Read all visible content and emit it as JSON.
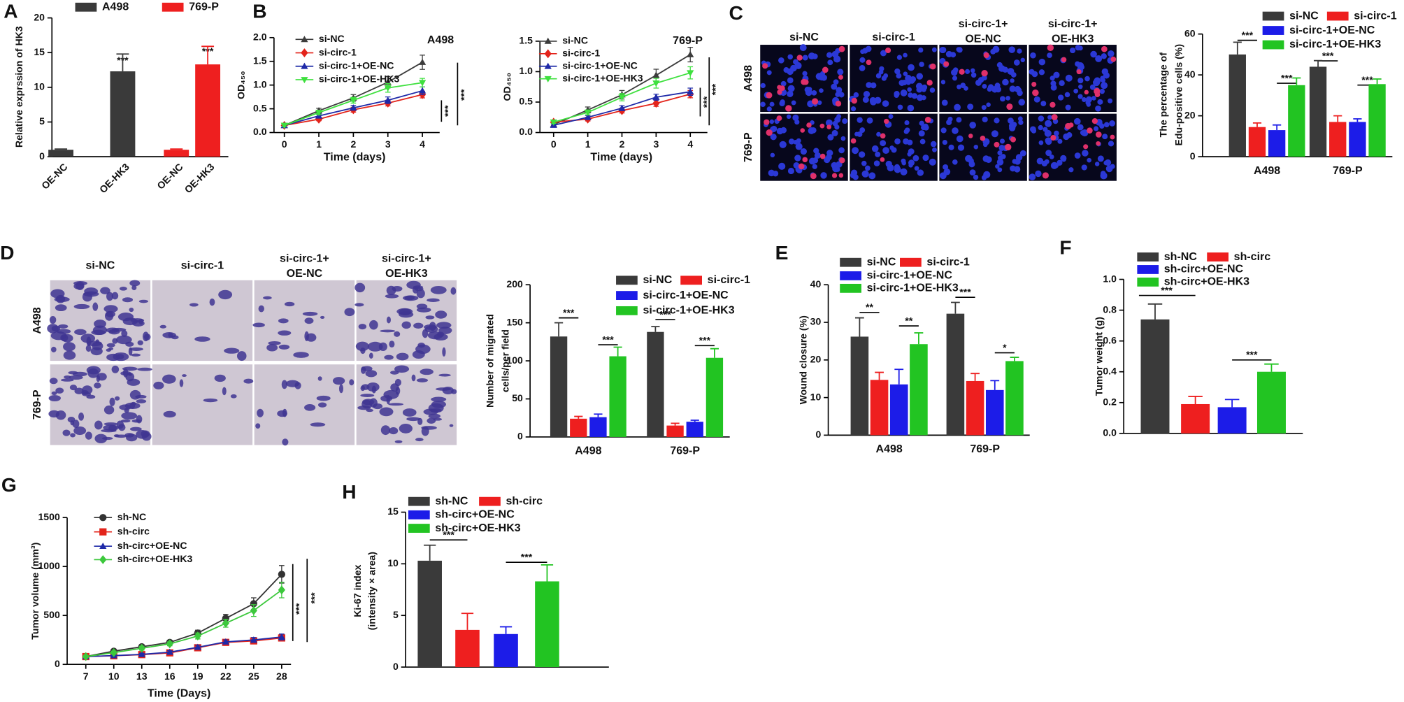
{
  "panel_labels": [
    "A",
    "B",
    "C",
    "D",
    "E",
    "F",
    "G",
    "H"
  ],
  "image_panels": [
    {
      "columns": [
        [
          "si-NC"
        ],
        [
          "si-circ-1"
        ],
        [
          "si-circ-1+",
          "OE-NC"
        ],
        [
          "si-circ-1+",
          "OE-HK3"
        ]
      ],
      "rows": [
        "A498",
        "769-P"
      ]
    },
    {
      "columns": [
        [
          "si-NC"
        ],
        [
          "si-circ-1"
        ],
        [
          "si-circ-1+",
          "OE-NC"
        ],
        [
          "si-circ-1+",
          "OE-HK3"
        ]
      ],
      "rows": [
        "A498",
        "769-P"
      ]
    }
  ],
  "chart_data": [
    {
      "type": "bar",
      "ylabel": [
        "Relative exprssion of HK3"
      ],
      "categories": [
        "OE-NC",
        "OE-HK3",
        "OE-NC",
        "OE-HK3"
      ],
      "series": [
        {
          "name": "A498",
          "color": "#3a3a3a",
          "values": [
            1.0,
            12.3,
            null,
            null
          ],
          "errors": [
            0.1,
            2.5,
            null,
            null
          ]
        },
        {
          "name": "769-P",
          "color": "#ee1f1f",
          "values": [
            null,
            null,
            1.0,
            13.3
          ],
          "errors": [
            null,
            null,
            0.1,
            2.6
          ]
        }
      ],
      "ylim": [
        0,
        20
      ],
      "yticks": [
        0,
        5,
        10,
        15,
        20
      ],
      "annotations": [
        "***",
        "***"
      ]
    },
    {
      "type": "line",
      "title": "A498",
      "xlabel": "Time (days)",
      "ylabel": [
        "OD₄₅₀"
      ],
      "x": [
        0,
        1,
        2,
        3,
        4
      ],
      "xlim": [
        -0.3,
        4.5
      ],
      "xticks": [
        0,
        1,
        2,
        3,
        4
      ],
      "ylim": [
        0,
        2
      ],
      "yticks": [
        {
          "value": 0,
          "label": "0.0"
        },
        0.5,
        {
          "value": 1,
          "label": "1.0"
        },
        1.5,
        {
          "value": 2,
          "label": "2.0"
        }
      ],
      "series": [
        {
          "name": "si-NC",
          "color": "#3c3c3c",
          "marker": "triangle-up",
          "values": [
            0.15,
            0.46,
            0.73,
            1.06,
            1.48
          ],
          "errors": [
            0.02,
            0.05,
            0.07,
            0.12,
            0.15
          ]
        },
        {
          "name": "si-circ-1",
          "color": "#e3241b",
          "marker": "diamond",
          "values": [
            0.15,
            0.28,
            0.48,
            0.62,
            0.8
          ],
          "errors": [
            0.02,
            0.03,
            0.05,
            0.06,
            0.07
          ]
        },
        {
          "name": "si-circ-1+OE-NC",
          "color": "#1f2aa8",
          "marker": "triangle-up",
          "values": [
            0.15,
            0.35,
            0.52,
            0.68,
            0.88
          ],
          "errors": [
            0.02,
            0.04,
            0.05,
            0.07,
            0.08
          ]
        },
        {
          "name": "si-circ-1+OE-HK3",
          "color": "#3ee03e",
          "marker": "triangle-down",
          "values": [
            0.15,
            0.42,
            0.68,
            0.94,
            1.05
          ],
          "errors": [
            0.02,
            0.04,
            0.06,
            0.09,
            0.09
          ]
        }
      ],
      "annotations": [
        "***",
        "***"
      ]
    },
    {
      "type": "line",
      "title": "769-P",
      "xlabel": "Time (days)",
      "ylabel": [
        "OD₄₅₀"
      ],
      "x": [
        0,
        1,
        2,
        3,
        4
      ],
      "xlim": [
        -0.4,
        4.5
      ],
      "xticks": [
        0,
        1,
        2,
        3,
        4
      ],
      "ylim": [
        0,
        1.5
      ],
      "yticks": [
        {
          "value": 0,
          "label": "0.0"
        },
        0.5,
        {
          "value": 1,
          "label": "1.0"
        },
        1.5
      ],
      "series": [
        {
          "name": "si-NC",
          "color": "#3c3c3c",
          "marker": "triangle-up",
          "values": [
            0.13,
            0.37,
            0.62,
            0.94,
            1.28
          ],
          "errors": [
            0.02,
            0.05,
            0.07,
            0.1,
            0.12
          ]
        },
        {
          "name": "si-circ-1",
          "color": "#e3241b",
          "marker": "diamond",
          "values": [
            0.17,
            0.22,
            0.36,
            0.48,
            0.63
          ],
          "errors": [
            0.02,
            0.03,
            0.04,
            0.05,
            0.06
          ]
        },
        {
          "name": "si-circ-1+OE-NC",
          "color": "#1f2aa8",
          "marker": "triangle-up",
          "values": [
            0.12,
            0.25,
            0.4,
            0.58,
            0.67
          ],
          "errors": [
            0.02,
            0.03,
            0.04,
            0.05,
            0.06
          ]
        },
        {
          "name": "si-circ-1+OE-HK3",
          "color": "#3ee03e",
          "marker": "triangle-down",
          "values": [
            0.17,
            0.33,
            0.58,
            0.81,
            0.98
          ],
          "errors": [
            0.02,
            0.04,
            0.06,
            0.08,
            0.1
          ]
        }
      ],
      "annotations": [
        "***",
        "***"
      ]
    },
    {
      "type": "bar",
      "ylabel": [
        "The percentage of",
        "Edu-positive cells (%)"
      ],
      "categories": [
        "A498",
        "769-P"
      ],
      "series": [
        {
          "name": "si-NC",
          "color": "#3a3a3a",
          "values": [
            50,
            44
          ],
          "errors": [
            6,
            3
          ]
        },
        {
          "name": "si-circ-1",
          "color": "#ee1f1f",
          "values": [
            14.5,
            17
          ],
          "errors": [
            2,
            3
          ]
        },
        {
          "name": "si-circ-1+OE-NC",
          "color": "#1c1ce8",
          "values": [
            13,
            17
          ],
          "errors": [
            2.5,
            1.5
          ]
        },
        {
          "name": "si-circ-1+OE-HK3",
          "color": "#22c422",
          "values": [
            35,
            35.5
          ],
          "errors": [
            3.5,
            2.5
          ]
        }
      ],
      "ylim": [
        0,
        60
      ],
      "yticks": [
        0,
        20,
        40,
        60
      ],
      "annotations": [
        "***",
        "***",
        "***",
        "***"
      ]
    },
    {
      "type": "bar",
      "ylabel": [
        "Number of migrated",
        "cells/per field"
      ],
      "categories": [
        "A498",
        "769-P"
      ],
      "series": [
        {
          "name": "si-NC",
          "color": "#3a3a3a",
          "values": [
            132,
            138
          ],
          "errors": [
            18,
            7
          ]
        },
        {
          "name": "si-circ-1",
          "color": "#ee1f1f",
          "values": [
            24,
            15
          ],
          "errors": [
            3,
            3
          ]
        },
        {
          "name": "si-circ-1+OE-NC",
          "color": "#1c1ce8",
          "values": [
            26,
            20
          ],
          "errors": [
            4,
            2
          ]
        },
        {
          "name": "si-circ-1+OE-HK3",
          "color": "#22c422",
          "values": [
            106,
            104
          ],
          "errors": [
            12,
            12
          ]
        }
      ],
      "ylim": [
        0,
        200
      ],
      "yticks": [
        0,
        50,
        100,
        150,
        200
      ],
      "annotations": [
        "***",
        "***",
        "***",
        "***"
      ]
    },
    {
      "type": "bar",
      "ylabel": [
        "Wound closure (%)"
      ],
      "categories": [
        "A498",
        "769-P"
      ],
      "series": [
        {
          "name": "si-NC",
          "color": "#3a3a3a",
          "values": [
            26.2,
            32.3
          ],
          "errors": [
            5,
            3
          ]
        },
        {
          "name": "si-circ-1",
          "color": "#ee1f1f",
          "values": [
            14.7,
            14.4
          ],
          "errors": [
            2,
            2
          ]
        },
        {
          "name": "si-circ-1+OE-NC",
          "color": "#1c1ce8",
          "values": [
            13.5,
            12
          ],
          "errors": [
            4,
            2.5
          ]
        },
        {
          "name": "si-circ-1+OE-HK3",
          "color": "#22c422",
          "values": [
            24.2,
            19.7
          ],
          "errors": [
            3,
            1
          ]
        }
      ],
      "ylim": [
        0,
        40
      ],
      "yticks": [
        0,
        10,
        20,
        30,
        40
      ],
      "annotations": [
        "**",
        "**",
        "***",
        "*"
      ]
    },
    {
      "type": "bar",
      "ylabel": [
        "Tumor weight (g)"
      ],
      "categories": [
        null
      ],
      "series": [
        {
          "name": "sh-NC",
          "color": "#3a3a3a",
          "values": [
            0.74
          ],
          "errors": [
            0.1
          ]
        },
        {
          "name": "sh-circ",
          "color": "#ee1f1f",
          "values": [
            0.19
          ],
          "errors": [
            0.05
          ]
        },
        {
          "name": "sh-circ+OE-NC",
          "color": "#1c1ce8",
          "values": [
            0.17
          ],
          "errors": [
            0.05
          ]
        },
        {
          "name": "sh-circ+OE-HK3",
          "color": "#22c422",
          "values": [
            0.4
          ],
          "errors": [
            0.05
          ]
        }
      ],
      "ylim": [
        0,
        1
      ],
      "yticks": [
        {
          "value": 0,
          "label": "0.0"
        },
        0.2,
        0.4,
        0.6,
        0.8,
        {
          "value": 1,
          "label": "1.0"
        }
      ],
      "annotations": [
        "***",
        "***"
      ]
    },
    {
      "type": "line",
      "xlabel": "Time (Days)",
      "ylabel": [
        "Tumor volume (mm³)"
      ],
      "x": [
        7,
        10,
        13,
        16,
        19,
        22,
        25,
        28
      ],
      "xlim": [
        5,
        29
      ],
      "xticks": [
        7,
        10,
        13,
        16,
        19,
        22,
        25,
        28
      ],
      "ylim": [
        0,
        1500
      ],
      "yticks": [
        0,
        500,
        1000,
        1500
      ],
      "series": [
        {
          "name": "sh-NC",
          "color": "#333333",
          "marker": "circle",
          "values": [
            80,
            135,
            180,
            225,
            320,
            470,
            620,
            920
          ],
          "errors": [
            10,
            15,
            20,
            20,
            30,
            40,
            60,
            90
          ]
        },
        {
          "name": "sh-circ",
          "color": "#e3241b",
          "marker": "square",
          "values": [
            80,
            88,
            100,
            118,
            170,
            225,
            240,
            270
          ],
          "errors": [
            10,
            10,
            12,
            15,
            20,
            20,
            25,
            30
          ]
        },
        {
          "name": "sh-circ+OE-NC",
          "color": "#1f2aa8",
          "marker": "triangle-up",
          "values": [
            80,
            90,
            102,
            125,
            175,
            230,
            250,
            280
          ],
          "errors": [
            10,
            10,
            12,
            15,
            20,
            20,
            25,
            30
          ]
        },
        {
          "name": "sh-circ+OE-HK3",
          "color": "#3cc83c",
          "marker": "diamond",
          "values": [
            80,
            120,
            165,
            210,
            290,
            420,
            550,
            760
          ],
          "errors": [
            10,
            15,
            20,
            20,
            30,
            40,
            60,
            80
          ]
        }
      ],
      "annotations": [
        "***",
        "***"
      ]
    },
    {
      "type": "bar",
      "ylabel": [
        "Ki-67 index",
        "(intensity × area)"
      ],
      "categories": [
        null
      ],
      "series": [
        {
          "name": "sh-NC",
          "color": "#3a3a3a",
          "values": [
            10.3
          ],
          "errors": [
            1.5
          ]
        },
        {
          "name": "sh-circ",
          "color": "#ee1f1f",
          "values": [
            3.6
          ],
          "errors": [
            1.6
          ]
        },
        {
          "name": "sh-circ+OE-NC",
          "color": "#1c1ce8",
          "values": [
            3.2
          ],
          "errors": [
            0.7
          ]
        },
        {
          "name": "sh-circ+OE-HK3",
          "color": "#22c422",
          "values": [
            8.3
          ],
          "errors": [
            1.6
          ]
        }
      ],
      "ylim": [
        0,
        15
      ],
      "yticks": [
        0,
        5,
        10,
        15
      ],
      "annotations": [
        "***",
        "***"
      ]
    }
  ]
}
